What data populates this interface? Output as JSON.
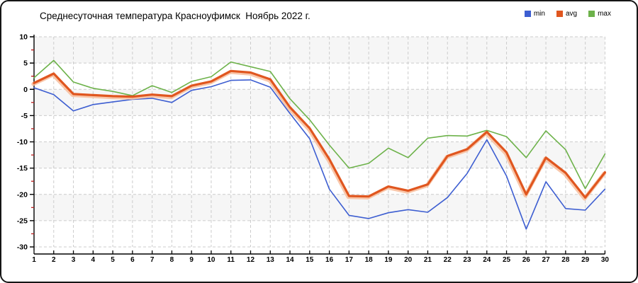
{
  "chart_data": {
    "type": "line",
    "title": "Среднесуточная температура Красноуфимск  Ноябрь 2022 г.",
    "xlabel": "",
    "ylabel": "",
    "x": [
      1,
      2,
      3,
      4,
      5,
      6,
      7,
      8,
      9,
      10,
      11,
      12,
      13,
      14,
      15,
      16,
      17,
      18,
      19,
      20,
      21,
      22,
      23,
      24,
      25,
      26,
      27,
      28,
      29,
      30
    ],
    "ylim": [
      -30,
      10
    ],
    "ytick_step": 5,
    "y_minor_tick_step": 2.5,
    "grid": true,
    "grid_style": "dashed",
    "legend_position": "top-right",
    "background_bands_every": 5,
    "band_color": "#f6f6f6",
    "grid_color": "#cccccc",
    "axis_color": "#000000",
    "minor_tick_color": "#bb1e1e",
    "series": [
      {
        "name": "min",
        "color": "#3d5ed1",
        "values": [
          0.3,
          -1,
          -4.1,
          -2.9,
          -2.4,
          -1.9,
          -1.7,
          -2.5,
          -0.2,
          0.5,
          1.7,
          1.8,
          0.4,
          -4.6,
          -9.4,
          -19,
          -24,
          -24.6,
          -23.5,
          -22.9,
          -23.4,
          -20.6,
          -16,
          -9.6,
          -16.5,
          -26.6,
          -17.6,
          -22.7,
          -23,
          -19
        ]
      },
      {
        "name": "avg",
        "color": "#e0561f",
        "halo_color": "#f8bd9b",
        "values": [
          1.2,
          3,
          -0.9,
          -1.1,
          -1.3,
          -1.4,
          -1,
          -1.3,
          0.7,
          1.5,
          3.5,
          3.2,
          1.9,
          -3.4,
          -7.4,
          -13.3,
          -20.3,
          -20.4,
          -18.5,
          -19.3,
          -18.1,
          -12.7,
          -11.4,
          -8.1,
          -12,
          -20,
          -13,
          -15.9,
          -20.6,
          -15.8
        ]
      },
      {
        "name": "max",
        "color": "#6db24a",
        "values": [
          2.2,
          5.5,
          1.4,
          0.2,
          -0.4,
          -1.2,
          0.7,
          -0.6,
          1.5,
          2.4,
          5.2,
          4.3,
          3.4,
          -1.8,
          -5.8,
          -10.6,
          -15,
          -14.1,
          -11.2,
          -13,
          -9.3,
          -8.8,
          -8.9,
          -7.8,
          -9,
          -13,
          -7.9,
          -11.5,
          -18.9,
          -12.3
        ]
      }
    ]
  }
}
